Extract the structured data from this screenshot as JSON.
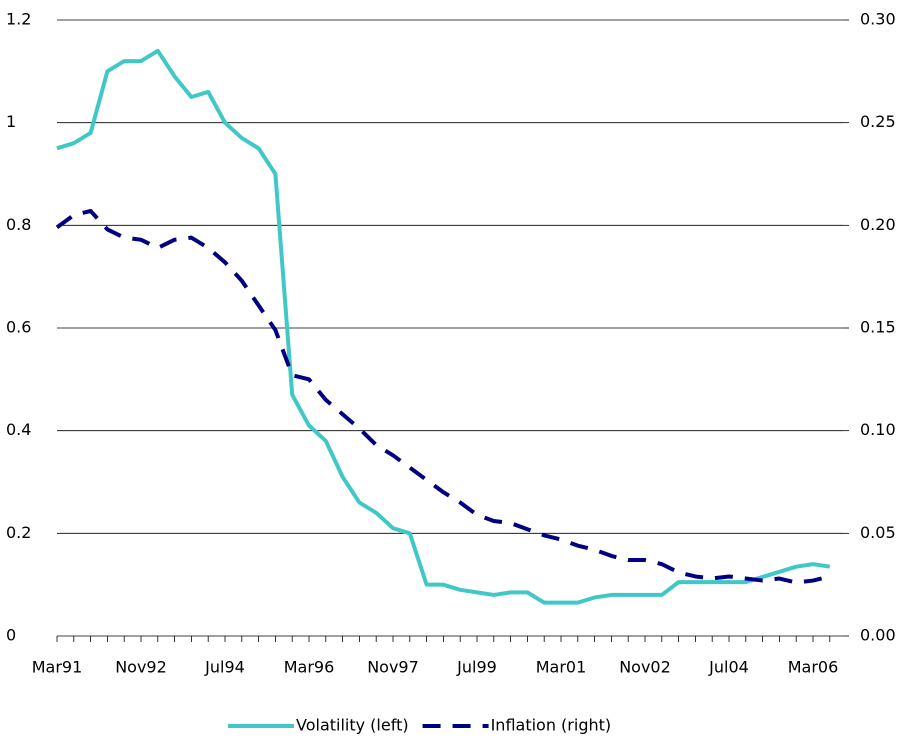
{
  "chart_data": {
    "type": "line",
    "categories": [
      "Mar91",
      null,
      null,
      null,
      null,
      "Nov92",
      null,
      null,
      null,
      null,
      "Jul94",
      null,
      null,
      null,
      null,
      "Mar96",
      null,
      null,
      null,
      null,
      "Nov97",
      null,
      null,
      null,
      null,
      "Jul99",
      null,
      null,
      null,
      null,
      "Mar01",
      null,
      null,
      null,
      null,
      "Nov02",
      null,
      null,
      null,
      null,
      "Jul04",
      null,
      null,
      null,
      null,
      "Mar06",
      null
    ],
    "series": [
      {
        "name": "Volatility (left)",
        "color": "#40c8c8",
        "axis": "y",
        "values": [
          0.95,
          0.96,
          0.98,
          1.1,
          1.12,
          1.12,
          1.14,
          1.09,
          1.05,
          1.06,
          1.0,
          0.97,
          0.95,
          0.9,
          0.47,
          0.41,
          0.38,
          0.31,
          0.26,
          0.24,
          0.21,
          0.2,
          0.1,
          0.1,
          0.09,
          0.085,
          0.08,
          0.085,
          0.085,
          0.065,
          0.065,
          0.065,
          0.075,
          0.08,
          0.08,
          0.08,
          0.08,
          0.105,
          0.105,
          0.105,
          0.105,
          0.105,
          0.115,
          0.125,
          0.135,
          0.14,
          0.135
        ]
      },
      {
        "name": "Inflation (right)",
        "color": "#000080",
        "axis": "y2",
        "values": [
          0.199,
          0.205,
          0.207,
          0.198,
          0.194,
          0.193,
          0.189,
          0.193,
          0.194,
          0.189,
          0.182,
          0.173,
          0.161,
          0.149,
          0.127,
          0.125,
          0.115,
          0.108,
          0.101,
          0.093,
          0.088,
          0.082,
          0.076,
          0.07,
          0.065,
          0.059,
          0.056,
          0.055,
          0.052,
          0.049,
          0.047,
          0.044,
          0.042,
          0.039,
          0.037,
          0.037,
          0.035,
          0.031,
          0.029,
          0.028,
          0.029,
          0.028,
          0.027,
          0.028,
          0.026,
          0.027,
          0.029
        ]
      }
    ],
    "ylim": [
      0,
      1.2
    ],
    "yticks": [
      0,
      0.2,
      0.4,
      0.6,
      0.8,
      1,
      1.2
    ],
    "y2lim": [
      0,
      0.3
    ],
    "y2ticks": [
      {
        "value": 0,
        "label": "0.00"
      },
      {
        "value": 0.05,
        "label": "0.05"
      },
      {
        "value": 0.1,
        "label": "0.10"
      },
      {
        "value": 0.15,
        "label": "0.15"
      },
      {
        "value": 0.2,
        "label": "0.20"
      },
      {
        "value": 0.25,
        "label": "0.25"
      },
      {
        "value": 0.3,
        "label": "0.30"
      }
    ],
    "grid": true,
    "legend": "bottom"
  }
}
